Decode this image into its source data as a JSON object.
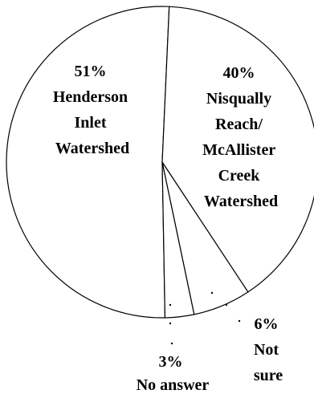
{
  "chart_data": {
    "type": "pie",
    "title": "",
    "slices": [
      {
        "value": 51,
        "percent_label": "51%",
        "lines": [
          "Henderson",
          "Inlet",
          "Watershed"
        ]
      },
      {
        "value": 40,
        "percent_label": "40%",
        "lines": [
          "Nisqually",
          "Reach/",
          "McAllister",
          "Creek",
          "Watershed"
        ]
      },
      {
        "value": 6,
        "percent_label": "6%",
        "lines": [
          "Not",
          "sure"
        ]
      },
      {
        "value": 3,
        "percent_label": "3%",
        "lines": [
          "No answer"
        ]
      }
    ],
    "colors": {
      "fill": "#ffffff",
      "stroke": "#000000"
    }
  }
}
